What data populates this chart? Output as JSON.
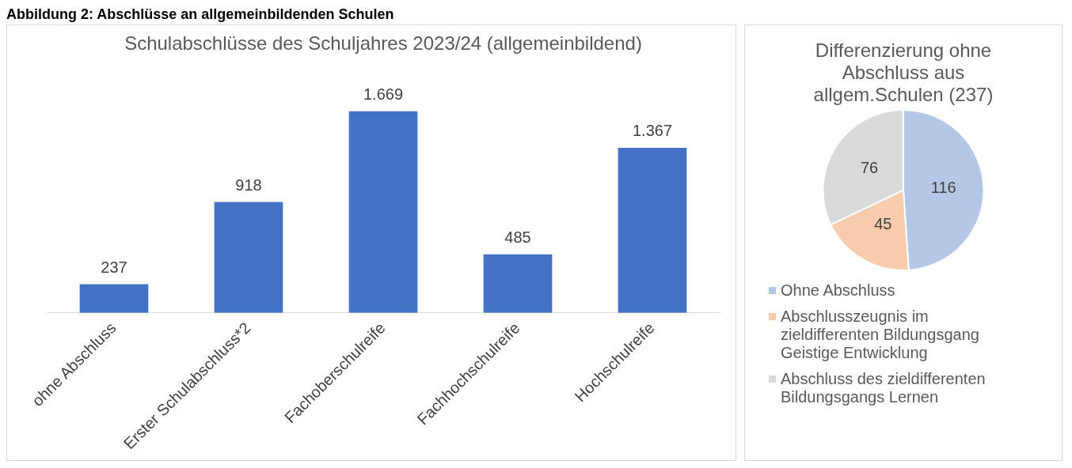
{
  "chart_data": [
    {
      "type": "bar",
      "title": "Schulabschlüsse des Schuljahres 2023/24 (allgemeinbildend)",
      "annotations": [
        "Abbildung 2: Abschlüsse an allgemeinbildenden Schulen"
      ],
      "categories": [
        "ohne Abschluss",
        "Erster Schulabschluss*2",
        "Fachoberschulreife",
        "Fachhochschulreife",
        "Hochschulreife"
      ],
      "values": [
        237,
        918,
        1669,
        485,
        1367
      ],
      "value_labels": [
        "237",
        "918",
        "1.669",
        "485",
        "1.367"
      ],
      "color": "#4472c4",
      "grid": false,
      "legend": false
    },
    {
      "type": "pie",
      "title": "Differenzierung ohne Abschluss aus allgem.Schulen (237)",
      "categories": [
        "Ohne Abschluss",
        "Abschlusszeugnis im zieldifferenten Bildungsgang Geistige Entwicklung",
        "Abschluss des zieldifferenten Bildungsgangs Lernen"
      ],
      "values": [
        116,
        45,
        76
      ],
      "colors": [
        "#b4c7e7",
        "#f8cbad",
        "#d9d9d9"
      ],
      "data_labels": true,
      "legend": "bottom"
    }
  ]
}
